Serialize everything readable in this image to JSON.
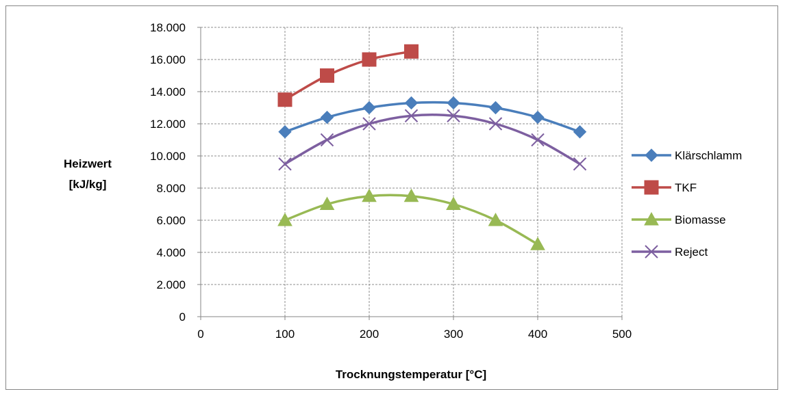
{
  "chart_data": {
    "type": "line",
    "xlabel": "Trocknungstemperatur [°C]",
    "ylabel_lines": [
      "Heizwert",
      "[kJ/kg]"
    ],
    "xlim": [
      0,
      500
    ],
    "ylim": [
      0,
      18000
    ],
    "x_ticks": [
      0,
      100,
      200,
      300,
      400,
      500
    ],
    "x_tick_labels": [
      "0",
      "100",
      "200",
      "300",
      "400",
      "500"
    ],
    "y_ticks": [
      0,
      2000,
      4000,
      6000,
      8000,
      10000,
      12000,
      14000,
      16000,
      18000
    ],
    "y_tick_labels": [
      "0",
      "2.000",
      "4.000",
      "6.000",
      "8.000",
      "10.000",
      "12.000",
      "14.000",
      "16.000",
      "18.000"
    ],
    "grid": true,
    "legend_position": "right",
    "series": [
      {
        "name": "Klärschlamm",
        "color": "#4a7ebb",
        "marker": "diamond",
        "x": [
          100,
          150,
          200,
          250,
          300,
          350,
          400,
          450
        ],
        "y": [
          11500,
          12400,
          13000,
          13300,
          13300,
          13000,
          12400,
          11500
        ]
      },
      {
        "name": "TKF",
        "color": "#be4b48",
        "marker": "square",
        "x": [
          100,
          150,
          200,
          250
        ],
        "y": [
          13500,
          15000,
          16000,
          16500
        ]
      },
      {
        "name": "Biomasse",
        "color": "#98b954",
        "marker": "triangle",
        "x": [
          100,
          150,
          200,
          250,
          300,
          350,
          400
        ],
        "y": [
          6000,
          7000,
          7500,
          7500,
          7000,
          6000,
          4500
        ]
      },
      {
        "name": "Reject",
        "color": "#7d5fa0",
        "marker": "x",
        "x": [
          100,
          150,
          200,
          250,
          300,
          350,
          400,
          450
        ],
        "y": [
          9500,
          11000,
          12000,
          12500,
          12500,
          12000,
          11000,
          9500
        ]
      }
    ]
  }
}
